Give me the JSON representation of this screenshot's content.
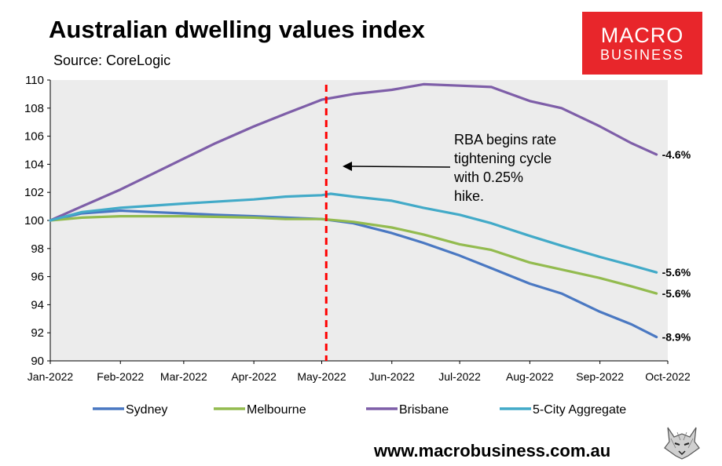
{
  "header": {
    "title": "Australian dwelling values index",
    "source": "Source: CoreLogic"
  },
  "logo": {
    "line1": "MACRO",
    "line2": "BUSINESS"
  },
  "footer": {
    "website": "www.macrobusiness.com.au"
  },
  "colors": {
    "sydney": "#4a78c2",
    "melbourne": "#93bb4f",
    "brisbane": "#7e5ea8",
    "aggregate": "#42aac8",
    "marker": "#ff0000",
    "plot_bg": "#ececec"
  },
  "chart_data": {
    "type": "line",
    "title": "Australian dwelling values index",
    "subtitle": "Source: CoreLogic",
    "ylim": [
      90,
      110
    ],
    "yticks": [
      90,
      92,
      94,
      96,
      98,
      100,
      102,
      104,
      106,
      108,
      110
    ],
    "xlim": [
      "2022-01-01",
      "2022-10-01"
    ],
    "xticks": [
      "Jan-2022",
      "Feb-2022",
      "Mar-2022",
      "Apr-2022",
      "May-2022",
      "Jun-2022",
      "Jul-2022",
      "Aug-2022",
      "Sep-2022",
      "Oct-2022"
    ],
    "grid": false,
    "legend": "bottom",
    "vline": {
      "date": "2022-05-03"
    },
    "annotation": {
      "lines": [
        "RBA begins rate",
        "tightening cycle",
        "with 0.25%",
        "hike."
      ]
    },
    "series": [
      {
        "name": "Sydney",
        "color_key": "sydney",
        "end_label": "-8.9%",
        "points": [
          [
            "2022-01-01",
            100.0
          ],
          [
            "2022-01-15",
            100.5
          ],
          [
            "2022-02-01",
            100.7
          ],
          [
            "2022-02-15",
            100.6
          ],
          [
            "2022-03-01",
            100.5
          ],
          [
            "2022-03-15",
            100.4
          ],
          [
            "2022-04-01",
            100.3
          ],
          [
            "2022-04-15",
            100.2
          ],
          [
            "2022-05-01",
            100.1
          ],
          [
            "2022-05-15",
            99.8
          ],
          [
            "2022-06-01",
            99.1
          ],
          [
            "2022-06-15",
            98.4
          ],
          [
            "2022-07-01",
            97.5
          ],
          [
            "2022-07-15",
            96.6
          ],
          [
            "2022-08-01",
            95.5
          ],
          [
            "2022-08-15",
            94.8
          ],
          [
            "2022-09-01",
            93.5
          ],
          [
            "2022-09-15",
            92.6
          ],
          [
            "2022-09-26",
            91.7
          ]
        ]
      },
      {
        "name": "Melbourne",
        "color_key": "melbourne",
        "end_label": "-5.6%",
        "points": [
          [
            "2022-01-01",
            100.0
          ],
          [
            "2022-01-15",
            100.2
          ],
          [
            "2022-02-01",
            100.3
          ],
          [
            "2022-03-01",
            100.3
          ],
          [
            "2022-04-01",
            100.2
          ],
          [
            "2022-04-15",
            100.1
          ],
          [
            "2022-05-01",
            100.1
          ],
          [
            "2022-05-15",
            99.9
          ],
          [
            "2022-06-01",
            99.5
          ],
          [
            "2022-06-15",
            99.0
          ],
          [
            "2022-07-01",
            98.3
          ],
          [
            "2022-07-15",
            97.9
          ],
          [
            "2022-08-01",
            97.0
          ],
          [
            "2022-08-15",
            96.5
          ],
          [
            "2022-09-01",
            95.9
          ],
          [
            "2022-09-15",
            95.3
          ],
          [
            "2022-09-26",
            94.8
          ]
        ]
      },
      {
        "name": "Brisbane",
        "color_key": "brisbane",
        "end_label": "-4.6%",
        "points": [
          [
            "2022-01-01",
            100.0
          ],
          [
            "2022-01-15",
            101.0
          ],
          [
            "2022-02-01",
            102.2
          ],
          [
            "2022-02-15",
            103.3
          ],
          [
            "2022-03-01",
            104.4
          ],
          [
            "2022-03-15",
            105.5
          ],
          [
            "2022-04-01",
            106.7
          ],
          [
            "2022-04-15",
            107.6
          ],
          [
            "2022-05-01",
            108.6
          ],
          [
            "2022-05-15",
            109.0
          ],
          [
            "2022-06-01",
            109.3
          ],
          [
            "2022-06-15",
            109.7
          ],
          [
            "2022-07-01",
            109.6
          ],
          [
            "2022-07-15",
            109.5
          ],
          [
            "2022-08-01",
            108.5
          ],
          [
            "2022-08-15",
            108.0
          ],
          [
            "2022-09-01",
            106.7
          ],
          [
            "2022-09-15",
            105.5
          ],
          [
            "2022-09-26",
            104.7
          ]
        ]
      },
      {
        "name": "5-City Aggregate",
        "color_key": "aggregate",
        "end_label": "-5.6%",
        "points": [
          [
            "2022-01-01",
            100.0
          ],
          [
            "2022-01-15",
            100.6
          ],
          [
            "2022-02-01",
            100.9
          ],
          [
            "2022-03-01",
            101.2
          ],
          [
            "2022-04-01",
            101.5
          ],
          [
            "2022-04-15",
            101.7
          ],
          [
            "2022-05-01",
            101.8
          ],
          [
            "2022-05-05",
            101.9
          ],
          [
            "2022-05-15",
            101.7
          ],
          [
            "2022-06-01",
            101.4
          ],
          [
            "2022-06-15",
            100.9
          ],
          [
            "2022-07-01",
            100.4
          ],
          [
            "2022-07-15",
            99.8
          ],
          [
            "2022-08-01",
            98.9
          ],
          [
            "2022-08-15",
            98.2
          ],
          [
            "2022-09-01",
            97.4
          ],
          [
            "2022-09-15",
            96.8
          ],
          [
            "2022-09-26",
            96.3
          ]
        ]
      }
    ]
  }
}
